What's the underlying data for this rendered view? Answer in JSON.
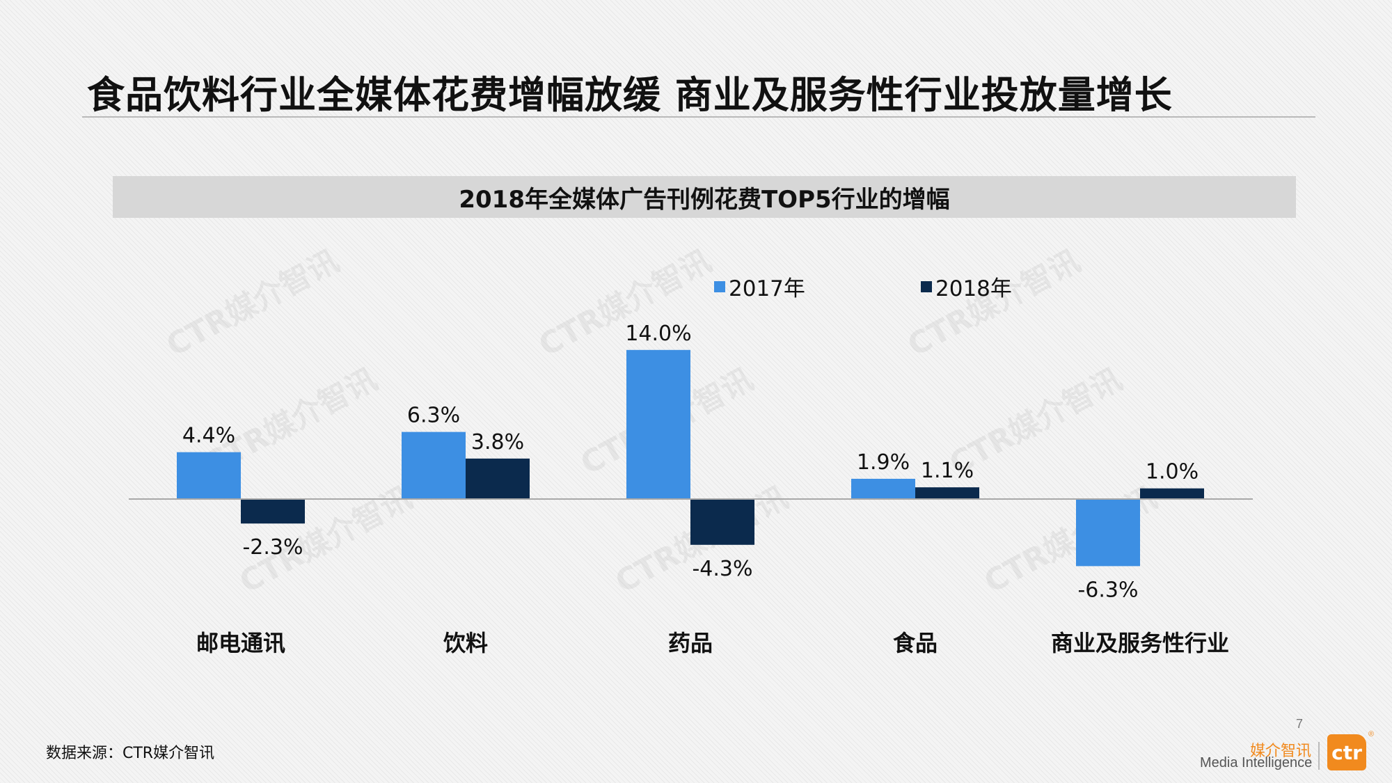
{
  "page": {
    "title": "食品饮料行业全媒体花费增幅放缓 商业及服务性行业投放量增长",
    "source": "数据来源：CTR媒介智讯",
    "page_number": "7",
    "brand_cn": "媒介智讯",
    "brand_en": "Media Intelligence",
    "logo_text": "ctr",
    "logo_reg": "®",
    "watermark_text": "CTR媒介智讯"
  },
  "colors": {
    "series_2017": "#3d8fe3",
    "series_2018": "#0b2a4d",
    "brand": "#f18a1e"
  },
  "chart_data": {
    "type": "bar",
    "title": "2018年全媒体广告刊例花费TOP5行业的增幅",
    "categories": [
      "邮电通讯",
      "饮料",
      "药品",
      "食品",
      "商业及服务性行业"
    ],
    "series": [
      {
        "name": "2017年",
        "values": [
          4.4,
          6.3,
          14.0,
          1.9,
          -6.3
        ],
        "labels": [
          "4.4%",
          "6.3%",
          "14.0%",
          "1.9%",
          "-6.3%"
        ]
      },
      {
        "name": "2018年",
        "values": [
          -2.3,
          3.8,
          -4.3,
          1.1,
          1.0
        ],
        "labels": [
          "-2.3%",
          "3.8%",
          "-4.3%",
          "1.1%",
          "1.0%"
        ]
      }
    ],
    "unit": "%",
    "legend_position": "top",
    "grid": false
  }
}
